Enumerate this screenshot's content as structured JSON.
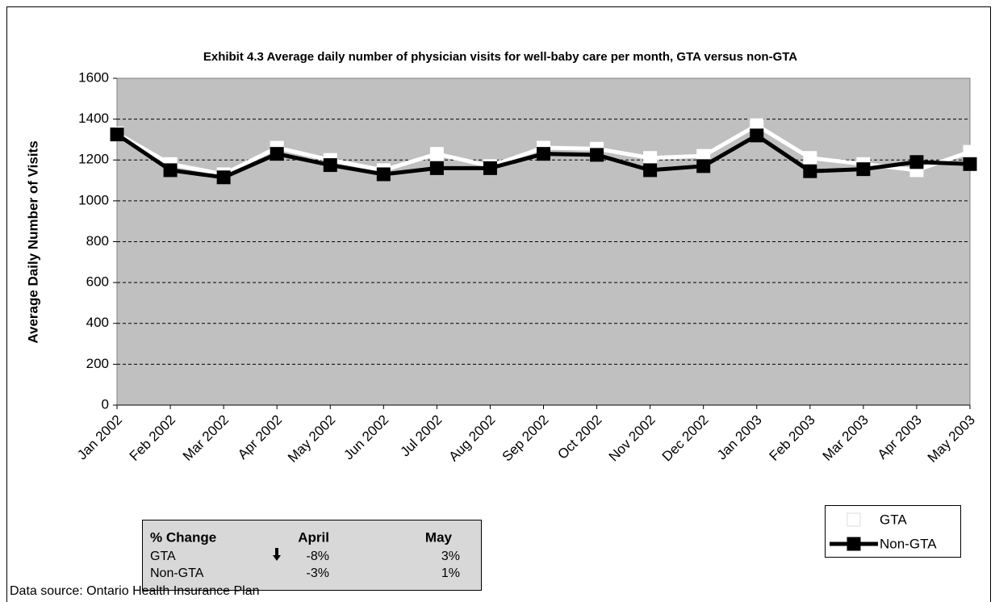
{
  "chart_data": {
    "type": "line",
    "title": "Exhibit 4.3 Average daily number of physician visits for well-baby care per month, GTA versus non-GTA",
    "y_label": "Average Daily Number of Visits",
    "categories": [
      "Jan 2002",
      "Feb 2002",
      "Mar 2002",
      "Apr 2002",
      "May 2002",
      "Jun 2002",
      "Jul 2002",
      "Aug 2002",
      "Sep 2002",
      "Oct 2002",
      "Nov 2002",
      "Dec 2002",
      "Jan 2003",
      "Feb 2003",
      "Mar 2003",
      "Apr 2003",
      "May 2003"
    ],
    "series": [
      {
        "name": "GTA",
        "color": "#ffffff",
        "values": [
          1330,
          1180,
          1130,
          1260,
          1200,
          1150,
          1230,
          1170,
          1260,
          1255,
          1210,
          1220,
          1370,
          1210,
          1180,
          1150,
          1240
        ]
      },
      {
        "name": "Non-GTA",
        "color": "#000000",
        "values": [
          1325,
          1150,
          1115,
          1230,
          1175,
          1130,
          1160,
          1160,
          1230,
          1225,
          1150,
          1170,
          1320,
          1145,
          1155,
          1190,
          1180
        ]
      }
    ],
    "ylim": [
      0,
      1600
    ],
    "yticks": [
      0,
      200,
      400,
      600,
      800,
      1000,
      1200,
      1400,
      1600
    ],
    "grid": true,
    "legend": "bottom-right"
  },
  "change_table": {
    "header": [
      "% Change",
      "April",
      "May"
    ],
    "rows": [
      [
        "GTA",
        "-8%",
        "3%"
      ],
      [
        "Non-GTA",
        "-3%",
        "1%"
      ]
    ]
  },
  "source": "Data source: Ontario Health Insurance Plan"
}
